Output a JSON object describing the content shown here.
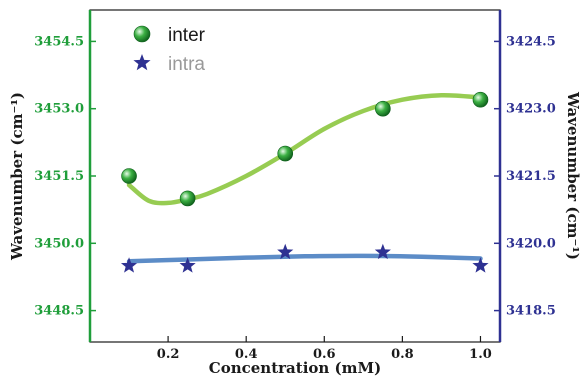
{
  "colors": {
    "left_axis": "#1f9e3a",
    "right_axis": "#2e3192",
    "inter_curve": "#8cc63f",
    "inter_marker": "#2ca02c",
    "intra_curve": "#4a7fc1",
    "intra_marker": "#2e3192",
    "legend_inter_text": "#1a1a1a",
    "legend_intra_text": "#999999"
  },
  "chart_data": {
    "type": "scatter",
    "xlabel": "Concentration (mM)",
    "ylabel_left": "Wavenumber (cm⁻¹)",
    "ylabel_right": "Wavenumber (cm⁻¹)",
    "xlim": [
      0,
      1.05
    ],
    "ylim_left": [
      3447.8,
      3455.2
    ],
    "ylim_right": [
      3417.8,
      3425.2
    ],
    "x_ticks": [
      "0.2",
      "0.4",
      "0.6",
      "0.8",
      "1.0"
    ],
    "x_tick_values": [
      0.2,
      0.4,
      0.6,
      0.8,
      1.0
    ],
    "y_ticks_left": [
      "3448.5",
      "3450.0",
      "3451.5",
      "3453.0",
      "3454.5"
    ],
    "y_tick_values_left": [
      3448.5,
      3450.0,
      3451.5,
      3453.0,
      3454.5
    ],
    "y_ticks_right": [
      "3418.5",
      "3420.0",
      "3421.5",
      "3423.0",
      "3424.5"
    ],
    "y_tick_values_right": [
      3418.5,
      3420.0,
      3421.5,
      3423.0,
      3424.5
    ],
    "legend_position": "top-left",
    "grid": false,
    "series": [
      {
        "name": "inter",
        "axis": "left",
        "marker": "sphere",
        "x": [
          0.1,
          0.25,
          0.5,
          0.75,
          1.0
        ],
        "y": [
          3451.5,
          3451.0,
          3452.0,
          3453.0,
          3453.2
        ],
        "fit_x": [
          0.1,
          0.15,
          0.2,
          0.25,
          0.3,
          0.4,
          0.5,
          0.6,
          0.7,
          0.8,
          0.9,
          1.0
        ],
        "fit_y": [
          3451.3,
          3450.95,
          3450.9,
          3450.98,
          3451.1,
          3451.5,
          3452.0,
          3452.55,
          3452.95,
          3453.2,
          3453.3,
          3453.25
        ]
      },
      {
        "name": "intra",
        "axis": "right",
        "marker": "star",
        "x": [
          0.1,
          0.25,
          0.5,
          0.75,
          1.0
        ],
        "y": [
          3419.5,
          3419.5,
          3419.8,
          3419.8,
          3419.5
        ],
        "fit_x": [
          0.1,
          0.25,
          0.4,
          0.55,
          0.7,
          0.85,
          1.0
        ],
        "fit_y": [
          3419.6,
          3419.64,
          3419.68,
          3419.71,
          3419.72,
          3419.7,
          3419.66
        ]
      }
    ]
  }
}
